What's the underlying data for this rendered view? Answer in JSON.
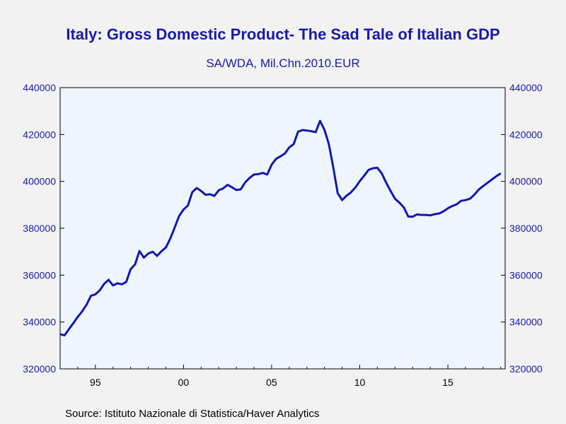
{
  "title": "Italy: Gross Domestic Product- The Sad Tale of Italian GDP",
  "subtitle": "SA/WDA, Mil.Chn.2010.EUR",
  "source": "Source:  Istituto Nazionale di Statistica/Haver Analytics",
  "colors": {
    "line": "#1515b0",
    "text": "#1a1aa6",
    "plot_bg": "#eef5fc",
    "page_bg": "#f2f2f2"
  },
  "chart_data": {
    "type": "line",
    "title": "Italy: Gross Domestic Product- The Sad Tale of Italian GDP",
    "subtitle": "SA/WDA, Mil.Chn.2010.EUR",
    "xlabel": "",
    "ylabel": "",
    "xlim": [
      1993.0,
      2018.25
    ],
    "ylim": [
      320000,
      440000
    ],
    "y_ticks": [
      320000,
      340000,
      360000,
      380000,
      400000,
      420000,
      440000
    ],
    "y_tick_labels": [
      "320000",
      "340000",
      "360000",
      "380000",
      "400000",
      "420000",
      "440000"
    ],
    "x_ticks": [
      1995,
      2000,
      2005,
      2010,
      2015
    ],
    "x_tick_labels": [
      "95",
      "00",
      "05",
      "10",
      "15"
    ],
    "y_axis_right_mirror": true,
    "grid": false,
    "series": [
      {
        "x": [
          1993.0,
          1993.25,
          1993.5,
          1993.75,
          1994.0,
          1994.25,
          1994.5,
          1994.75,
          1995.0,
          1995.25,
          1995.5,
          1995.75,
          1996.0,
          1996.25,
          1996.5,
          1996.75,
          1997.0,
          1997.25,
          1997.5,
          1997.75,
          1998.0,
          1998.25,
          1998.5,
          1998.75,
          1999.0,
          1999.25,
          1999.5,
          1999.75,
          2000.0,
          2000.25,
          2000.5,
          2000.75,
          2001.0,
          2001.25,
          2001.5,
          2001.75,
          2002.0,
          2002.25,
          2002.5,
          2002.75,
          2003.0,
          2003.25,
          2003.5,
          2003.75,
          2004.0,
          2004.25,
          2004.5,
          2004.75,
          2005.0,
          2005.25,
          2005.5,
          2005.75,
          2006.0,
          2006.25,
          2006.5,
          2006.75,
          2007.0,
          2007.25,
          2007.5,
          2007.75,
          2008.0,
          2008.25,
          2008.5,
          2008.75,
          2009.0,
          2009.25,
          2009.5,
          2009.75,
          2010.0,
          2010.25,
          2010.5,
          2010.75,
          2011.0,
          2011.25,
          2011.5,
          2011.75,
          2012.0,
          2012.25,
          2012.5,
          2012.75,
          2013.0,
          2013.25,
          2013.5,
          2013.75,
          2014.0,
          2014.25,
          2014.5,
          2014.75,
          2015.0,
          2015.25,
          2015.5,
          2015.75,
          2016.0,
          2016.25,
          2016.5,
          2016.75,
          2017.0,
          2017.25,
          2017.5,
          2017.75,
          2018.0
        ],
        "values": [
          334800,
          334300,
          337000,
          339500,
          342200,
          344500,
          347400,
          351200,
          351800,
          353500,
          356300,
          358000,
          355600,
          356500,
          356100,
          357100,
          362500,
          364600,
          370300,
          367500,
          369200,
          370000,
          368200,
          370200,
          371800,
          375600,
          380300,
          385200,
          388000,
          389700,
          395400,
          397200,
          395900,
          394300,
          394500,
          393800,
          396200,
          397000,
          398500,
          397500,
          396300,
          396600,
          399600,
          401500,
          402900,
          403100,
          403600,
          402900,
          407100,
          409600,
          410700,
          411900,
          414500,
          415900,
          421200,
          421900,
          421700,
          421400,
          421000,
          425800,
          421900,
          415800,
          405900,
          395000,
          392000,
          393900,
          395300,
          397400,
          400100,
          402400,
          404900,
          405600,
          405800,
          403400,
          399400,
          395900,
          392600,
          390900,
          388900,
          385000,
          384900,
          385900,
          385700,
          385700,
          385500,
          386000,
          386300,
          387200,
          388500,
          389500,
          390200,
          391700,
          392000,
          392600,
          394300,
          396500,
          398000,
          399400,
          400800,
          402200,
          403400
        ]
      }
    ]
  }
}
